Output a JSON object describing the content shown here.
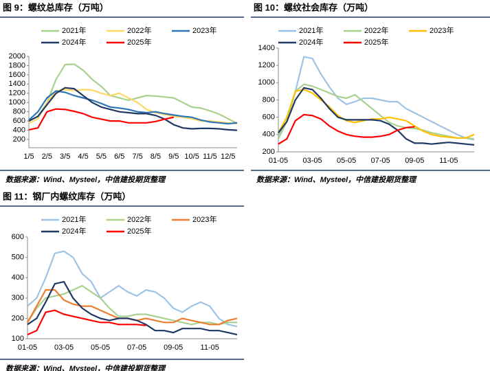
{
  "chart_data": [
    {
      "type": "line",
      "title": "图 9：螺纹总库存（万吨）",
      "source": "数据来源：Wind、Mysteel，中信建投期货整理",
      "categories": [
        "1/5",
        null,
        "2/5",
        null,
        "3/5",
        null,
        "4/5",
        null,
        "5/5",
        null,
        "6/5",
        null,
        "7/5",
        null,
        "8/5",
        null,
        "9/5",
        null,
        "10/5",
        null,
        "11/5",
        null,
        "12/5",
        null
      ],
      "ylim": [
        200,
        2000
      ],
      "yticks": [
        200,
        400,
        600,
        800,
        1000,
        1200,
        1400,
        1600,
        1800,
        2000
      ],
      "series": [
        {
          "name": "2021年",
          "color": "#a9d18e",
          "values": [
            600,
            700,
            1000,
            1500,
            1820,
            1830,
            1700,
            1500,
            1350,
            1150,
            1100,
            1050,
            1100,
            1150,
            1140,
            1120,
            1100,
            1000,
            900,
            880,
            820,
            750,
            650,
            550
          ]
        },
        {
          "name": "2022年",
          "color": "#ffd966",
          "values": [
            550,
            650,
            1000,
            1250,
            1280,
            1260,
            1280,
            1270,
            1200,
            1150,
            1200,
            1100,
            1000,
            850,
            780,
            740,
            700,
            680,
            650,
            600,
            600,
            580,
            560,
            540
          ]
        },
        {
          "name": "2023年",
          "color": "#2e75b6",
          "values": [
            620,
            800,
            1100,
            1250,
            1220,
            1150,
            1100,
            1050,
            980,
            900,
            880,
            850,
            800,
            780,
            800,
            760,
            730,
            700,
            680,
            620,
            580,
            560,
            540,
            560
          ]
        },
        {
          "name": "2024年",
          "color": "#1f3864",
          "values": [
            600,
            700,
            950,
            1200,
            1320,
            1300,
            1150,
            1000,
            900,
            850,
            800,
            780,
            760,
            760,
            720,
            640,
            520,
            450,
            430,
            440,
            440,
            430,
            410,
            400
          ]
        },
        {
          "name": "2025年",
          "color": "#ff0000",
          "values": [
            410,
            450,
            800,
            860,
            850,
            810,
            760,
            680,
            640,
            600,
            600,
            560,
            560,
            560,
            590,
            640,
            680,
            null,
            null,
            null,
            null,
            null,
            null,
            null
          ]
        }
      ]
    },
    {
      "type": "line",
      "title": "图 10：螺纹社会库存（万吨）",
      "source": "数据来源：Wind、Mysteel，中信建投期货整理",
      "categories": [
        "01-05",
        null,
        null,
        null,
        "03-05",
        null,
        null,
        null,
        "05-05",
        null,
        null,
        null,
        "07-05",
        null,
        null,
        null,
        "09-05",
        null,
        null,
        null,
        "11-05",
        null,
        null,
        null
      ],
      "ylim": [
        200,
        1400
      ],
      "yticks": [
        200,
        400,
        600,
        800,
        1000,
        1200,
        1400
      ],
      "series": [
        {
          "name": "2021年",
          "color": "#9dc3e6",
          "values": [
            380,
            550,
            900,
            1300,
            1280,
            1100,
            950,
            820,
            750,
            780,
            820,
            820,
            800,
            780,
            780,
            700,
            650,
            600,
            550,
            500,
            450,
            400,
            360,
            340
          ]
        },
        {
          "name": "2022年",
          "color": "#a9d18e",
          "values": [
            350,
            550,
            900,
            980,
            960,
            920,
            880,
            840,
            820,
            860,
            780,
            700,
            620,
            540,
            500,
            480,
            470,
            450,
            420,
            400,
            380,
            360,
            360,
            350
          ]
        },
        {
          "name": "2023年",
          "color": "#ffc000",
          "values": [
            420,
            600,
            900,
            920,
            880,
            800,
            720,
            620,
            560,
            540,
            560,
            580,
            580,
            600,
            580,
            560,
            500,
            440,
            400,
            380,
            370,
            360,
            360,
            400
          ]
        },
        {
          "name": "2024年",
          "color": "#1f3864",
          "values": [
            420,
            550,
            800,
            940,
            920,
            820,
            700,
            600,
            570,
            570,
            570,
            570,
            560,
            520,
            450,
            350,
            300,
            300,
            290,
            300,
            310,
            300,
            290,
            280
          ]
        },
        {
          "name": "2025年",
          "color": "#ff0000",
          "values": [
            290,
            350,
            560,
            630,
            620,
            580,
            500,
            440,
            400,
            380,
            370,
            370,
            380,
            400,
            450,
            480,
            490,
            null,
            null,
            null,
            null,
            null,
            null,
            null
          ]
        }
      ]
    },
    {
      "type": "line",
      "title": "图 11：钢厂内螺纹库存（万吨）",
      "source": "数据来源：Wind、Mysteel，中信建投期货整理",
      "categories": [
        "01-05",
        null,
        null,
        null,
        "03-05",
        null,
        null,
        null,
        "05-05",
        null,
        null,
        null,
        "07-05",
        null,
        null,
        null,
        "09-05",
        null,
        null,
        null,
        "11-05",
        null,
        null,
        null
      ],
      "ylim": [
        100,
        600
      ],
      "yticks": [
        100,
        200,
        300,
        400,
        500,
        600
      ],
      "series": [
        {
          "name": "2021年",
          "color": "#9dc3e6",
          "values": [
            260,
            300,
            400,
            520,
            530,
            500,
            420,
            380,
            300,
            330,
            360,
            330,
            310,
            340,
            330,
            300,
            250,
            230,
            260,
            280,
            260,
            200,
            170,
            160
          ]
        },
        {
          "name": "2022年",
          "color": "#a9d18e",
          "values": [
            180,
            250,
            300,
            310,
            320,
            340,
            360,
            330,
            300,
            250,
            210,
            210,
            220,
            220,
            210,
            200,
            190,
            180,
            170,
            180,
            180,
            170,
            180,
            180
          ]
        },
        {
          "name": "2023年",
          "color": "#ed7d31",
          "values": [
            180,
            260,
            340,
            340,
            290,
            270,
            260,
            260,
            240,
            220,
            200,
            200,
            190,
            200,
            190,
            180,
            180,
            200,
            190,
            180,
            170,
            170,
            190,
            200
          ]
        },
        {
          "name": "2024年",
          "color": "#1f3864",
          "values": [
            170,
            200,
            280,
            370,
            380,
            300,
            250,
            220,
            200,
            190,
            200,
            200,
            190,
            170,
            140,
            140,
            130,
            150,
            150,
            150,
            140,
            140,
            130,
            120
          ]
        },
        {
          "name": "2025年",
          "color": "#ff0000",
          "values": [
            120,
            140,
            230,
            240,
            220,
            210,
            200,
            190,
            180,
            180,
            170,
            170,
            170,
            165,
            null,
            null,
            null,
            null,
            null,
            null,
            null,
            null,
            null,
            null
          ]
        }
      ]
    }
  ]
}
